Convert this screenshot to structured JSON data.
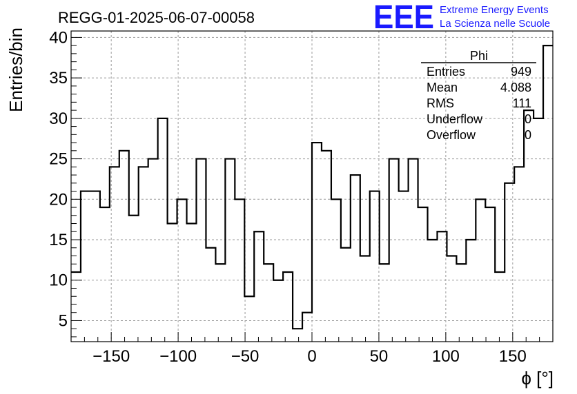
{
  "chart_data": {
    "type": "histogram",
    "title": "REGG-01-2025-06-07-00058",
    "xlabel": "ϕ [°]",
    "ylabel": "Entries/bin",
    "xlim": [
      -180,
      180
    ],
    "ylim": [
      2.4,
      40.8
    ],
    "bin_width": 7.2,
    "grid": true,
    "x_ticks": [
      -150,
      -100,
      -50,
      0,
      50,
      100,
      150
    ],
    "y_ticks": [
      5,
      10,
      15,
      20,
      25,
      30,
      35,
      40
    ],
    "x_tick_labels": [
      "−150",
      "−100",
      "−50",
      "0",
      "50",
      "100",
      "150"
    ],
    "y_tick_labels": [
      "5",
      "10",
      "15",
      "20",
      "25",
      "30",
      "35",
      "40"
    ],
    "values": [
      11,
      21,
      21,
      19,
      24,
      26,
      18,
      24,
      25,
      30,
      17,
      20,
      17,
      25,
      14,
      12,
      25,
      20,
      8,
      16,
      12,
      10,
      11,
      4,
      6,
      27,
      26,
      20,
      14,
      23,
      13,
      21,
      12,
      25,
      21,
      25,
      19,
      15,
      16,
      13,
      12,
      15,
      20,
      19,
      11,
      22,
      24,
      31,
      30,
      39
    ]
  },
  "stats_box": {
    "title": "Phi",
    "rows": [
      {
        "label": "Entries",
        "value": "949"
      },
      {
        "label": "Mean",
        "value": "4.088"
      },
      {
        "label": "RMS",
        "value": "111"
      },
      {
        "label": "Underflow",
        "value": "0"
      },
      {
        "label": "Overflow",
        "value": "0"
      }
    ]
  },
  "logo": {
    "text": "EEE",
    "line1": "Extreme Energy Events",
    "line2": "La Scienza nelle Scuole",
    "color": "#1a1aff"
  },
  "colors": {
    "line": "#000000",
    "grid": "#9a9a9a"
  }
}
